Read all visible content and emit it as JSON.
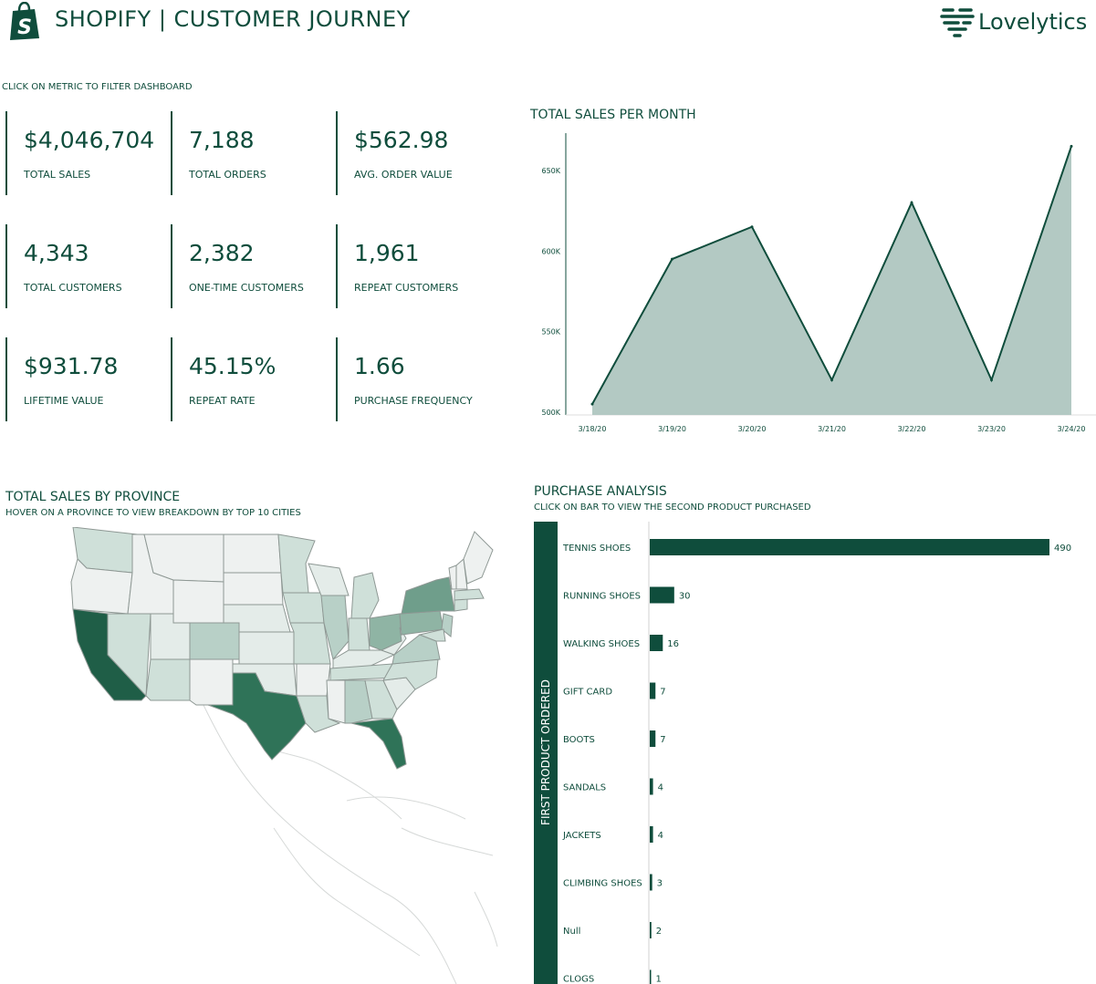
{
  "header": {
    "title": "SHOPIFY | CUSTOMER JOURNEY",
    "brand": "Lovelytics",
    "logo_icon": "shopify-bag-icon",
    "brand_icon": "lovelytics-logo-icon"
  },
  "hint": "CLICK ON METRIC TO FILTER DASHBOARD",
  "kpis": [
    {
      "value": "$4,046,704",
      "label": "TOTAL SALES"
    },
    {
      "value": "7,188",
      "label": "TOTAL ORDERS"
    },
    {
      "value": "$562.98",
      "label": "AVG. ORDER VALUE"
    },
    {
      "value": "4,343",
      "label": "TOTAL CUSTOMERS"
    },
    {
      "value": "2,382",
      "label": "ONE-TIME CUSTOMERS"
    },
    {
      "value": "1,961",
      "label": "REPEAT CUSTOMERS"
    },
    {
      "value": "$931.78",
      "label": "LIFETIME VALUE"
    },
    {
      "value": "45.15%",
      "label": "REPEAT RATE"
    },
    {
      "value": "1.66",
      "label": "PURCHASE FREQUENCY"
    }
  ],
  "sales_chart": {
    "title": "TOTAL SALES PER MONTH"
  },
  "map": {
    "title": "TOTAL SALES BY PROVINCE",
    "subtitle": "HOVER ON A PROVINCE TO VIEW BREAKDOWN BY TOP 10 CITIES"
  },
  "purchase": {
    "title": "PURCHASE ANALYSIS",
    "subtitle": "CLICK ON BAR TO VIEW THE SECOND PRODUCT PURCHASED",
    "axis_label": "FIRST PRODUCT ORDERED"
  },
  "colors": {
    "primary": "#0f4d3c",
    "area_fill": "#b3c9c3",
    "map_light": "#eef1f0",
    "map_mid": "#b8d0c7",
    "map_dark": "#2f7358"
  },
  "chart_data": [
    {
      "type": "area",
      "title": "TOTAL SALES PER MONTH",
      "x": [
        "3/18/20",
        "3/19/20",
        "3/20/20",
        "3/21/20",
        "3/22/20",
        "3/23/20",
        "3/24/20"
      ],
      "values": [
        505000,
        595000,
        615000,
        520000,
        630000,
        520000,
        665000
      ],
      "yticks": [
        "500K",
        "550K",
        "600K",
        "650K"
      ],
      "ylim": [
        500000,
        672000
      ],
      "grid": false
    },
    {
      "type": "bar",
      "orientation": "horizontal",
      "title": "PURCHASE ANALYSIS",
      "ylabel": "FIRST PRODUCT ORDERED",
      "categories": [
        "TENNIS SHOES",
        "RUNNING SHOES",
        "WALKING SHOES",
        "GIFT CARD",
        "BOOTS",
        "SANDALS",
        "JACKETS",
        "CLIMBING SHOES",
        "Null",
        "CLOGS"
      ],
      "values": [
        490,
        30,
        16,
        7,
        7,
        4,
        4,
        3,
        2,
        1
      ]
    }
  ]
}
